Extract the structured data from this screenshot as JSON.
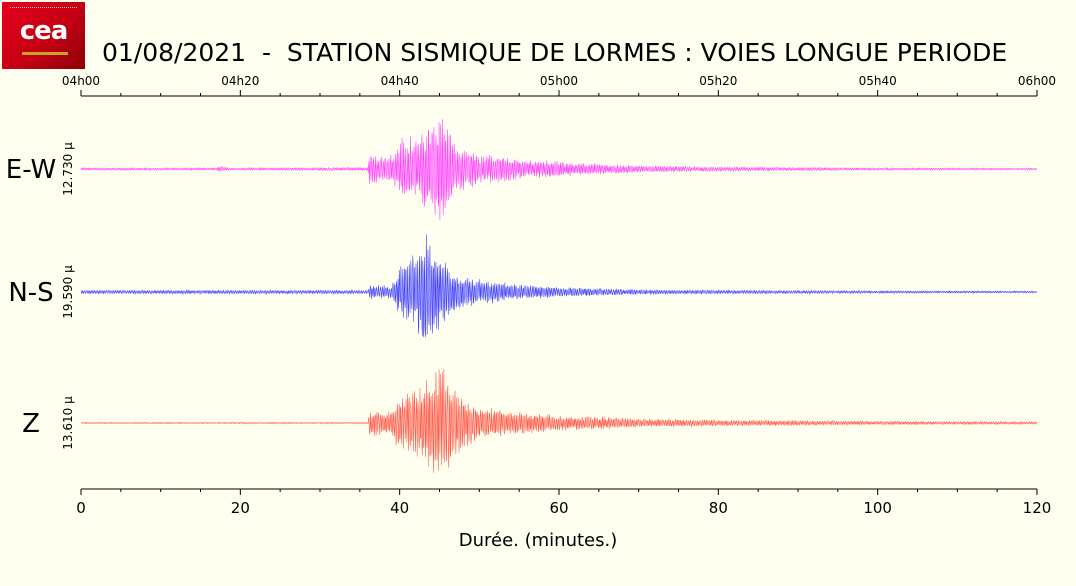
{
  "logo": {
    "text": "cea"
  },
  "title": "01/08/2021  -  STATION SISMIQUE DE LORMES : VOIES LONGUE PERIODE",
  "chart_data": {
    "type": "line",
    "title": "01/08/2021  -  STATION SISMIQUE DE LORMES : VOIES LONGUE PERIODE",
    "xlabel": "Durée.  (minutes.)",
    "xlim": [
      0,
      120
    ],
    "x_ticks": [
      0,
      20,
      40,
      60,
      80,
      100,
      120
    ],
    "x_tick_labels": [
      "0",
      "20",
      "40",
      "60",
      "80",
      "100",
      "120"
    ],
    "top_axis_times": [
      "04h00",
      "04h20",
      "04h40",
      "05h00",
      "05h20",
      "05h40",
      "06h00"
    ],
    "grid": false,
    "series": [
      {
        "name": "E-W",
        "color": "#ff44ff",
        "scale_label": "12.730 µ",
        "envelope": [
          [
            0,
            0.02
          ],
          [
            17,
            0.02
          ],
          [
            17.5,
            0.06
          ],
          [
            18.5,
            0.02
          ],
          [
            36,
            0.03
          ],
          [
            36.2,
            0.28
          ],
          [
            38,
            0.22
          ],
          [
            39.5,
            0.3
          ],
          [
            40.3,
            0.58
          ],
          [
            42,
            0.55
          ],
          [
            43.5,
            0.72
          ],
          [
            44.5,
            0.95
          ],
          [
            45.5,
            0.9
          ],
          [
            47,
            0.42
          ],
          [
            50,
            0.28
          ],
          [
            55,
            0.17
          ],
          [
            60,
            0.13
          ],
          [
            65,
            0.09
          ],
          [
            70,
            0.06
          ],
          [
            80,
            0.04
          ],
          [
            90,
            0.03
          ],
          [
            100,
            0.02
          ],
          [
            120,
            0.015
          ]
        ]
      },
      {
        "name": "N-S",
        "color": "#4444ff",
        "scale_label": "19.590 µ",
        "envelope": [
          [
            0,
            0.03
          ],
          [
            36,
            0.03
          ],
          [
            36.3,
            0.12
          ],
          [
            39,
            0.1
          ],
          [
            40,
            0.4
          ],
          [
            41,
            0.55
          ],
          [
            42,
            0.6
          ],
          [
            43,
            0.95
          ],
          [
            44,
            0.75
          ],
          [
            45.5,
            0.55
          ],
          [
            47,
            0.3
          ],
          [
            50,
            0.2
          ],
          [
            55,
            0.12
          ],
          [
            60,
            0.08
          ],
          [
            65,
            0.06
          ],
          [
            70,
            0.04
          ],
          [
            80,
            0.03
          ],
          [
            100,
            0.02
          ],
          [
            120,
            0.015
          ]
        ]
      },
      {
        "name": "Z",
        "color": "#ff5a4a",
        "scale_label": "13.610 µ",
        "envelope": [
          [
            0,
            0.01
          ],
          [
            36,
            0.01
          ],
          [
            36.2,
            0.22
          ],
          [
            38.5,
            0.18
          ],
          [
            40,
            0.45
          ],
          [
            41.5,
            0.48
          ],
          [
            42.5,
            0.55
          ],
          [
            44,
            0.78
          ],
          [
            45,
            0.92
          ],
          [
            46,
            0.75
          ],
          [
            48,
            0.4
          ],
          [
            50,
            0.28
          ],
          [
            55,
            0.18
          ],
          [
            60,
            0.12
          ],
          [
            65,
            0.1
          ],
          [
            70,
            0.07
          ],
          [
            80,
            0.05
          ],
          [
            90,
            0.04
          ],
          [
            100,
            0.03
          ],
          [
            120,
            0.02
          ]
        ]
      }
    ]
  }
}
